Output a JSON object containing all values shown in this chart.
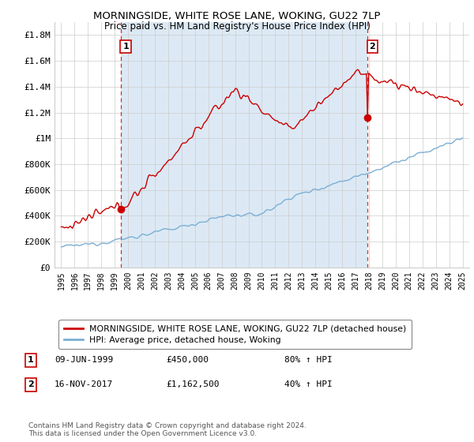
{
  "title": "MORNINGSIDE, WHITE ROSE LANE, WOKING, GU22 7LP",
  "subtitle": "Price paid vs. HM Land Registry's House Price Index (HPI)",
  "ylim": [
    0,
    1900000
  ],
  "yticks": [
    0,
    200000,
    400000,
    600000,
    800000,
    1000000,
    1200000,
    1400000,
    1600000,
    1800000
  ],
  "ytick_labels": [
    "£0",
    "£200K",
    "£400K",
    "£600K",
    "£800K",
    "£1M",
    "£1.2M",
    "£1.4M",
    "£1.6M",
    "£1.8M"
  ],
  "legend_line1": "MORNINGSIDE, WHITE ROSE LANE, WOKING, GU22 7LP (detached house)",
  "legend_line2": "HPI: Average price, detached house, Woking",
  "annotation1_num": "1",
  "annotation1_date": "09-JUN-1999",
  "annotation1_price": "£450,000",
  "annotation1_hpi": "80% ↑ HPI",
  "annotation2_num": "2",
  "annotation2_date": "16-NOV-2017",
  "annotation2_price": "£1,162,500",
  "annotation2_hpi": "40% ↑ HPI",
  "footer": "Contains HM Land Registry data © Crown copyright and database right 2024.\nThis data is licensed under the Open Government Licence v3.0.",
  "sale1_year": 1999.44,
  "sale1_price": 450000,
  "sale2_year": 2017.88,
  "sale2_price": 1162500,
  "red_line_color": "#cc0000",
  "blue_line_color": "#7bafd4",
  "fill_color": "#dce9f5",
  "dashed_vline_color": "#cc0000",
  "background_color": "#ffffff",
  "grid_color": "#cccccc"
}
